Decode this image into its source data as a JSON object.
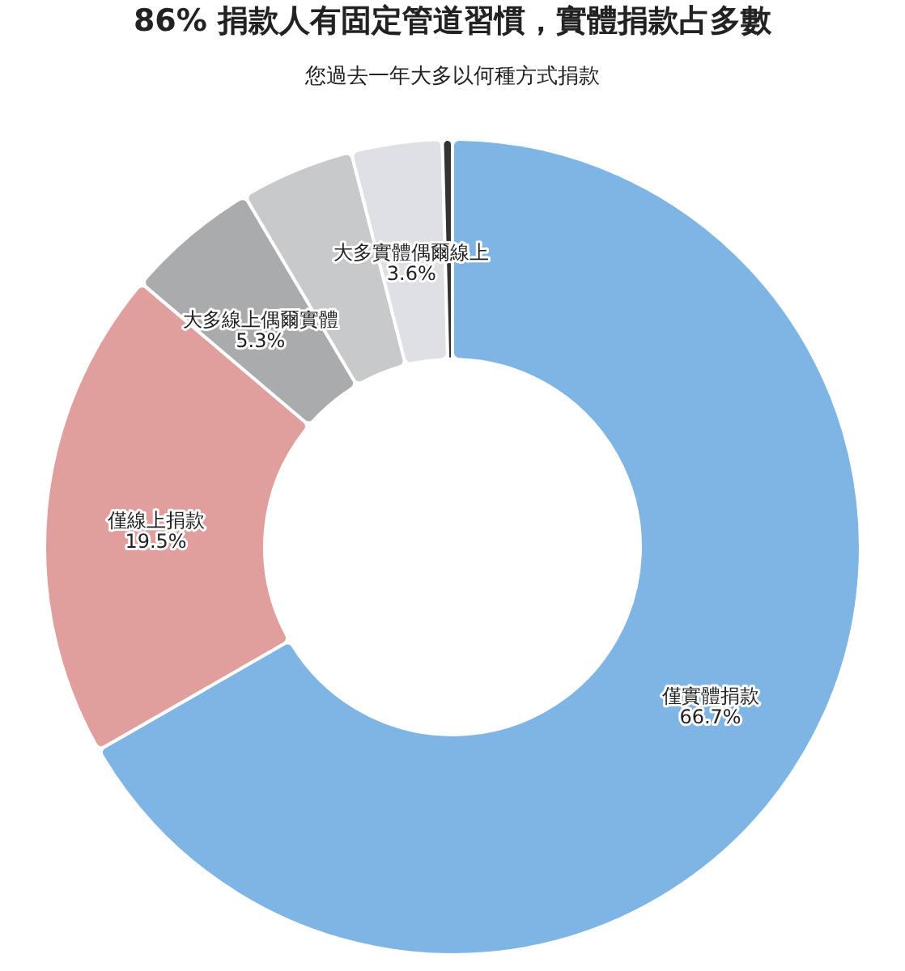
{
  "chart_data": {
    "type": "donut",
    "title": "86% 捐款人有固定管道習慣，實體捐款占多數",
    "subtitle": "您過去一年大多以何種方式捐款",
    "categories": [
      "僅實體捐款",
      "僅線上捐款",
      "大多線上偶爾實體",
      null,
      "大多實體偶爾線上",
      null
    ],
    "values": [
      66.7,
      19.5,
      5.3,
      4.5,
      3.6,
      0.4
    ],
    "value_labels": [
      "66.7%",
      "19.5%",
      "5.3%",
      null,
      "3.6%",
      null
    ],
    "colors": [
      "#7fb5e4",
      "#e09e9c",
      "#a9abad",
      "#c8c9cb",
      "#dfe0e4",
      "#333333"
    ],
    "legend": false
  }
}
